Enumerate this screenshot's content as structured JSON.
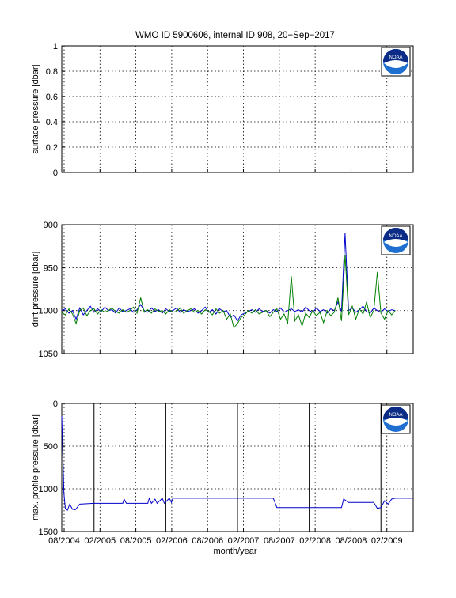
{
  "title": "WMO ID 5900606, internal ID 908, 20−Sep−2017",
  "xlabel": "month/year",
  "x_tick_labels": [
    "08/2004",
    "02/2005",
    "08/2005",
    "02/2006",
    "08/2006",
    "02/2007",
    "08/2007",
    "02/2008",
    "08/2008",
    "02/2009"
  ],
  "logo_text": "NOAA",
  "colors": {
    "blue": "#0000cc",
    "green": "#007f00",
    "logo_blue": "#1f6fd0",
    "logo_navy": "#0b2b86"
  },
  "chart_data": [
    {
      "type": "line",
      "name": "surface",
      "ylabel": "surface pressure [dbar]",
      "ylim": [
        0,
        1
      ],
      "y_reversed": false,
      "y_ticks": [
        "0",
        "0.2",
        "0.4",
        "0.6",
        "0.8",
        "1"
      ],
      "grid": true,
      "series": []
    },
    {
      "type": "line",
      "name": "drift",
      "ylabel": "drift pressure [dbar]",
      "ylim": [
        900,
        1050
      ],
      "y_reversed": true,
      "y_ticks": [
        "900",
        "950",
        "1000",
        "1050"
      ],
      "grid": true,
      "series": [
        {
          "color": "#0000cc",
          "points": [
            [
              2004.55,
              1000
            ],
            [
              2004.6,
              998
            ],
            [
              2004.65,
              1003
            ],
            [
              2004.7,
              1000
            ],
            [
              2004.75,
              1010
            ],
            [
              2004.8,
              997
            ],
            [
              2004.85,
              1005
            ],
            [
              2004.9,
              1000
            ],
            [
              2004.95,
              995
            ],
            [
              2005.0,
              1002
            ],
            [
              2005.05,
              998
            ],
            [
              2005.1,
              1001
            ],
            [
              2005.15,
              996
            ],
            [
              2005.2,
              1000
            ],
            [
              2005.25,
              999
            ],
            [
              2005.3,
              1003
            ],
            [
              2005.35,
              997
            ],
            [
              2005.4,
              1001
            ],
            [
              2005.45,
              1000
            ],
            [
              2005.5,
              998
            ],
            [
              2005.55,
              1002
            ],
            [
              2005.6,
              999
            ],
            [
              2005.65,
              993
            ],
            [
              2005.7,
              1000
            ],
            [
              2005.75,
              1002
            ],
            [
              2005.8,
              997
            ],
            [
              2005.85,
              1001
            ],
            [
              2005.9,
              999
            ],
            [
              2005.95,
              1003
            ],
            [
              2006.0,
              998
            ],
            [
              2006.05,
              1001
            ],
            [
              2006.1,
              1000
            ],
            [
              2006.15,
              997
            ],
            [
              2006.2,
              1002
            ],
            [
              2006.25,
              999
            ],
            [
              2006.3,
              1001
            ],
            [
              2006.35,
              1000
            ],
            [
              2006.4,
              998
            ],
            [
              2006.45,
              1003
            ],
            [
              2006.5,
              1000
            ],
            [
              2006.55,
              996
            ],
            [
              2006.6,
              1002
            ],
            [
              2006.65,
              999
            ],
            [
              2006.7,
              1004
            ],
            [
              2006.75,
              998
            ],
            [
              2006.8,
              1001
            ],
            [
              2006.85,
              1000
            ],
            [
              2006.9,
              1008
            ],
            [
              2006.95,
              1005
            ],
            [
              2007.0,
              1012
            ],
            [
              2007.05,
              1005
            ],
            [
              2007.1,
              1003
            ],
            [
              2007.15,
              1001
            ],
            [
              2007.2,
              999
            ],
            [
              2007.25,
              1002
            ],
            [
              2007.3,
              998
            ],
            [
              2007.35,
              1001
            ],
            [
              2007.4,
              1000
            ],
            [
              2007.45,
              1003
            ],
            [
              2007.5,
              999
            ],
            [
              2007.55,
              1001
            ],
            [
              2007.6,
              997
            ],
            [
              2007.65,
              1002
            ],
            [
              2007.7,
              1000
            ],
            [
              2007.75,
              998
            ],
            [
              2007.8,
              1001
            ],
            [
              2007.85,
              999
            ],
            [
              2007.9,
              1002
            ],
            [
              2007.95,
              996
            ],
            [
              2008.0,
              1000
            ],
            [
              2008.05,
              1002
            ],
            [
              2008.1,
              997
            ],
            [
              2008.15,
              1001
            ],
            [
              2008.2,
              999
            ],
            [
              2008.25,
              1003
            ],
            [
              2008.3,
              998
            ],
            [
              2008.35,
              1000
            ],
            [
              2008.4,
              990
            ],
            [
              2008.45,
              1001
            ],
            [
              2008.5,
              910
            ],
            [
              2008.55,
              1000
            ],
            [
              2008.6,
              997
            ],
            [
              2008.65,
              1002
            ],
            [
              2008.7,
              999
            ],
            [
              2008.75,
              995
            ],
            [
              2008.8,
              1001
            ],
            [
              2008.85,
              1003
            ],
            [
              2008.9,
              997
            ],
            [
              2008.95,
              1000
            ],
            [
              2009.0,
              1002
            ],
            [
              2009.05,
              998
            ],
            [
              2009.1,
              1001
            ],
            [
              2009.15,
              999
            ],
            [
              2009.2,
              1000
            ]
          ]
        },
        {
          "color": "#007f00",
          "points": [
            [
              2004.55,
              1002
            ],
            [
              2004.6,
              1005
            ],
            [
              2004.65,
              998
            ],
            [
              2004.7,
              1004
            ],
            [
              2004.75,
              1015
            ],
            [
              2004.8,
              1000
            ],
            [
              2004.85,
              997
            ],
            [
              2004.9,
              1006
            ],
            [
              2004.95,
              1000
            ],
            [
              2005.0,
              998
            ],
            [
              2005.05,
              1004
            ],
            [
              2005.1,
              999
            ],
            [
              2005.15,
              1002
            ],
            [
              2005.2,
              1000
            ],
            [
              2005.25,
              997
            ],
            [
              2005.3,
              1001
            ],
            [
              2005.35,
              1003
            ],
            [
              2005.4,
              999
            ],
            [
              2005.45,
              1002
            ],
            [
              2005.5,
              1000
            ],
            [
              2005.55,
              996
            ],
            [
              2005.6,
              1003
            ],
            [
              2005.65,
              985
            ],
            [
              2005.7,
              1002
            ],
            [
              2005.75,
              999
            ],
            [
              2005.8,
              1003
            ],
            [
              2005.85,
              998
            ],
            [
              2005.9,
              1001
            ],
            [
              2005.95,
              1000
            ],
            [
              2006.0,
              1004
            ],
            [
              2006.05,
              999
            ],
            [
              2006.1,
              1002
            ],
            [
              2006.15,
              1001
            ],
            [
              2006.2,
              997
            ],
            [
              2006.25,
              1003
            ],
            [
              2006.3,
              1000
            ],
            [
              2006.35,
              998
            ],
            [
              2006.4,
              1002
            ],
            [
              2006.45,
              1000
            ],
            [
              2006.5,
              1004
            ],
            [
              2006.55,
              999
            ],
            [
              2006.6,
              1001
            ],
            [
              2006.65,
              1005
            ],
            [
              2006.7,
              998
            ],
            [
              2006.75,
              1003
            ],
            [
              2006.8,
              1000
            ],
            [
              2006.85,
              1010
            ],
            [
              2006.9,
              1004
            ],
            [
              2006.95,
              1020
            ],
            [
              2007.0,
              1015
            ],
            [
              2007.05,
              1008
            ],
            [
              2007.1,
              1005
            ],
            [
              2007.15,
              1000
            ],
            [
              2007.2,
              1003
            ],
            [
              2007.25,
              999
            ],
            [
              2007.3,
              1004
            ],
            [
              2007.35,
              1002
            ],
            [
              2007.4,
              1000
            ],
            [
              2007.45,
              1007
            ],
            [
              2007.5,
              1002
            ],
            [
              2007.55,
              998
            ],
            [
              2007.6,
              1010
            ],
            [
              2007.65,
              1004
            ],
            [
              2007.7,
              1015
            ],
            [
              2007.75,
              960
            ],
            [
              2007.8,
              1012
            ],
            [
              2007.85,
              1005
            ],
            [
              2007.9,
              1018
            ],
            [
              2007.95,
              1003
            ],
            [
              2008.0,
              1008
            ],
            [
              2008.05,
              1000
            ],
            [
              2008.1,
              1006
            ],
            [
              2008.15,
              1002
            ],
            [
              2008.2,
              1014
            ],
            [
              2008.25,
              1000
            ],
            [
              2008.3,
              1006
            ],
            [
              2008.35,
              1002
            ],
            [
              2008.4,
              985
            ],
            [
              2008.45,
              1012
            ],
            [
              2008.5,
              935
            ],
            [
              2008.55,
              1005
            ],
            [
              2008.6,
              995
            ],
            [
              2008.65,
              1010
            ],
            [
              2008.7,
              998
            ],
            [
              2008.75,
              1004
            ],
            [
              2008.8,
              990
            ],
            [
              2008.85,
              1008
            ],
            [
              2008.9,
              1000
            ],
            [
              2008.95,
              955
            ],
            [
              2009.0,
              1003
            ],
            [
              2009.05,
              1010
            ],
            [
              2009.1,
              1000
            ],
            [
              2009.15,
              1005
            ],
            [
              2009.2,
              1000
            ]
          ]
        }
      ]
    },
    {
      "type": "line",
      "name": "profile",
      "ylabel": "max. profile pressure [dbar]",
      "ylim": [
        0,
        1500
      ],
      "y_reversed": true,
      "y_ticks": [
        "0",
        "500",
        "1000",
        "1500"
      ],
      "grid": true,
      "year_lines": [
        2005.0,
        2006.0,
        2007.0,
        2008.0,
        2009.0
      ],
      "series": [
        {
          "color": "#0000cc",
          "points": [
            [
              2004.55,
              150
            ],
            [
              2004.58,
              1050
            ],
            [
              2004.6,
              1230
            ],
            [
              2004.63,
              1250
            ],
            [
              2004.66,
              1180
            ],
            [
              2004.7,
              1240
            ],
            [
              2004.74,
              1245
            ],
            [
              2004.8,
              1180
            ],
            [
              2005.0,
              1170
            ],
            [
              2005.4,
              1170
            ],
            [
              2005.42,
              1120
            ],
            [
              2005.45,
              1170
            ],
            [
              2005.75,
              1170
            ],
            [
              2005.77,
              1110
            ],
            [
              2005.8,
              1170
            ],
            [
              2005.85,
              1120
            ],
            [
              2005.88,
              1170
            ],
            [
              2005.95,
              1110
            ],
            [
              2005.98,
              1170
            ],
            [
              2006.05,
              1110
            ],
            [
              2006.08,
              1160
            ],
            [
              2006.1,
              1110
            ],
            [
              2006.6,
              1110
            ],
            [
              2007.0,
              1110
            ],
            [
              2007.5,
              1110
            ],
            [
              2007.55,
              1220
            ],
            [
              2008.0,
              1220
            ],
            [
              2008.45,
              1220
            ],
            [
              2008.48,
              1120
            ],
            [
              2008.55,
              1160
            ],
            [
              2008.9,
              1160
            ],
            [
              2008.95,
              1230
            ],
            [
              2009.0,
              1220
            ],
            [
              2009.05,
              1140
            ],
            [
              2009.1,
              1180
            ],
            [
              2009.15,
              1120
            ],
            [
              2009.2,
              1110
            ],
            [
              2009.45,
              1110
            ]
          ]
        }
      ]
    }
  ]
}
